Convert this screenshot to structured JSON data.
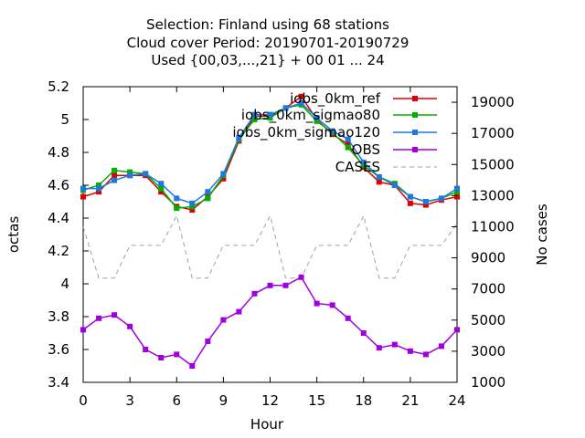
{
  "chart_data": {
    "type": "line",
    "title_lines": [
      "Selection: Finland using    68 stations",
      "Cloud cover   Period: 20190701-20190729",
      "Used {00,03,...,21} + 00 01 ... 24"
    ],
    "xlabel": "Hour",
    "ylabel": "octas",
    "y2label": "No cases",
    "xlim": [
      0,
      24
    ],
    "ylim": [
      3.4,
      5.2
    ],
    "y2lim": [
      1000,
      20000
    ],
    "xticks": [
      "0",
      "3",
      "6",
      "9",
      "12",
      "15",
      "18",
      "21",
      "24"
    ],
    "yticks": [
      "3.4",
      "3.6",
      "3.8",
      "4",
      "4.2",
      "4.4",
      "4.6",
      "4.8",
      "5",
      "5.2"
    ],
    "y2ticks": [
      "1000",
      "3000",
      "5000",
      "7000",
      "9000",
      "11000",
      "13000",
      "15000",
      "17000",
      "19000"
    ],
    "x": [
      0,
      1,
      2,
      3,
      4,
      5,
      6,
      7,
      8,
      9,
      10,
      11,
      12,
      13,
      14,
      15,
      16,
      17,
      18,
      19,
      20,
      21,
      22,
      23,
      24
    ],
    "series": [
      {
        "name": "iobs_0km_ref",
        "color": "#e00000",
        "axis": "y1",
        "marker": "square",
        "values": [
          4.53,
          4.56,
          4.66,
          4.66,
          4.66,
          4.56,
          4.47,
          4.45,
          4.53,
          4.64,
          4.87,
          5.02,
          5.02,
          5.07,
          5.14,
          5.0,
          4.91,
          4.85,
          4.71,
          4.62,
          4.6,
          4.49,
          4.48,
          4.51,
          4.53
        ]
      },
      {
        "name": "iobs_0km_sigmao80",
        "color": "#00b000",
        "axis": "y1",
        "marker": "square",
        "values": [
          4.57,
          4.6,
          4.69,
          4.68,
          4.67,
          4.58,
          4.46,
          4.47,
          4.52,
          4.66,
          4.88,
          5.0,
          5.01,
          5.07,
          5.09,
          4.99,
          4.92,
          4.83,
          4.72,
          4.65,
          4.61,
          4.53,
          4.5,
          4.52,
          4.56
        ]
      },
      {
        "name": "iobs_0km_sigmao120",
        "color": "#1e78e0",
        "axis": "y1",
        "marker": "square",
        "values": [
          4.58,
          4.58,
          4.63,
          4.66,
          4.67,
          4.61,
          4.52,
          4.49,
          4.56,
          4.67,
          4.89,
          5.03,
          5.03,
          5.07,
          5.1,
          5.01,
          4.93,
          4.88,
          4.74,
          4.65,
          4.6,
          4.53,
          4.5,
          4.52,
          4.58
        ]
      },
      {
        "name": "OBS",
        "color": "#a000e0",
        "axis": "y1",
        "marker": "square",
        "values": [
          3.72,
          3.79,
          3.81,
          3.74,
          3.6,
          3.55,
          3.57,
          3.5,
          3.65,
          3.78,
          3.83,
          3.94,
          3.99,
          3.99,
          4.04,
          3.88,
          3.87,
          3.79,
          3.7,
          3.61,
          3.63,
          3.59,
          3.57,
          3.62,
          3.72
        ]
      },
      {
        "name": "CASES",
        "color": "#a0a0a0",
        "axis": "y2",
        "dashed": true,
        "values": [
          11000,
          7700,
          7700,
          9800,
          9800,
          9800,
          11700,
          7700,
          7700,
          9800,
          9800,
          9800,
          11700,
          7700,
          7700,
          9800,
          9800,
          9800,
          11700,
          7700,
          7700,
          9800,
          9800,
          9800,
          11200
        ]
      }
    ],
    "grid": false,
    "legend_position": "top-right"
  }
}
